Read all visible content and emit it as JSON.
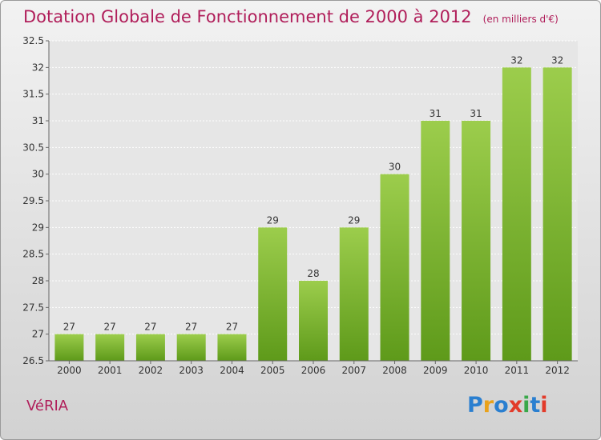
{
  "title": "Dotation Globale de Fonctionnement de 2000 à 2012",
  "unit": "(en milliers d'€)",
  "place": "VéRIA",
  "logo": "Proxiti",
  "colors": {
    "title": "#b01e5a",
    "bar_light": "#9ccd4c",
    "bar_dark": "#5e9a1a"
  },
  "chart_data": {
    "type": "bar",
    "title": "Dotation Globale de Fonctionnement de 2000 à 2012",
    "subtitle": "(en milliers d'€)",
    "xlabel": "",
    "ylabel": "",
    "categories": [
      "2000",
      "2001",
      "2002",
      "2003",
      "2004",
      "2005",
      "2006",
      "2007",
      "2008",
      "2009",
      "2010",
      "2011",
      "2012"
    ],
    "values": [
      27,
      27,
      27,
      27,
      27,
      29,
      28,
      29,
      30,
      31,
      31,
      32,
      32
    ],
    "ylim": [
      26.5,
      32.5
    ],
    "yticks": [
      "26.5",
      "27",
      "27.5",
      "28",
      "28.5",
      "29",
      "29.5",
      "30",
      "30.5",
      "31",
      "31.5",
      "32",
      "32.5"
    ],
    "grid": true
  }
}
